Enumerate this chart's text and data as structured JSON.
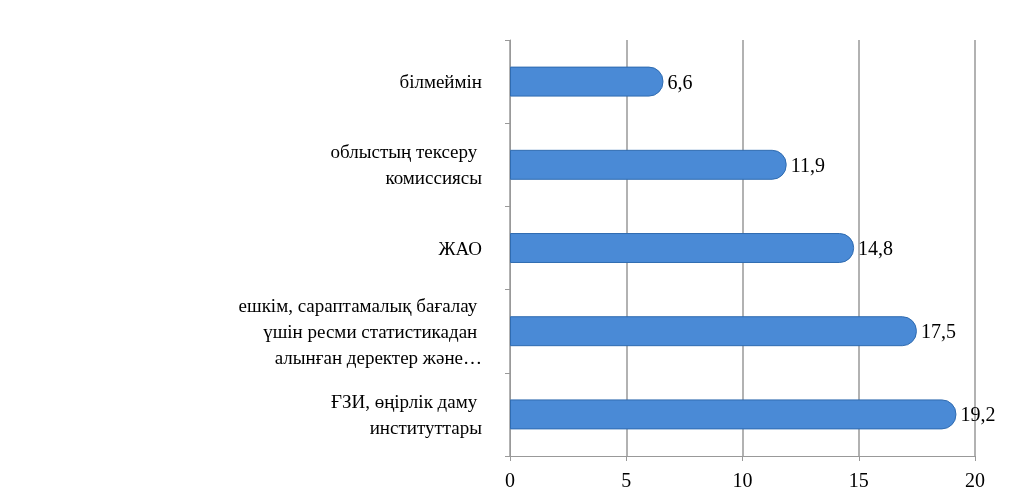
{
  "chart_data": {
    "type": "bar",
    "orientation": "horizontal",
    "categories": [
      "білмеймін",
      "облыстың тексеру комиссиясы",
      "ЖАО",
      "ешкім, сараптамалық бағалау үшін ресми статистикадан алынған деректер және…",
      "ҒЗИ, өңірлік даму институттары"
    ],
    "values": [
      6.6,
      11.9,
      14.8,
      17.5,
      19.2
    ],
    "value_labels": [
      "6,6",
      "11,9",
      "14,8",
      "17,5",
      "19,2"
    ],
    "color": "#4a8ad6",
    "xlim": [
      0,
      20
    ],
    "xticks": [
      0,
      5,
      10,
      15,
      20
    ],
    "grid": "x"
  }
}
